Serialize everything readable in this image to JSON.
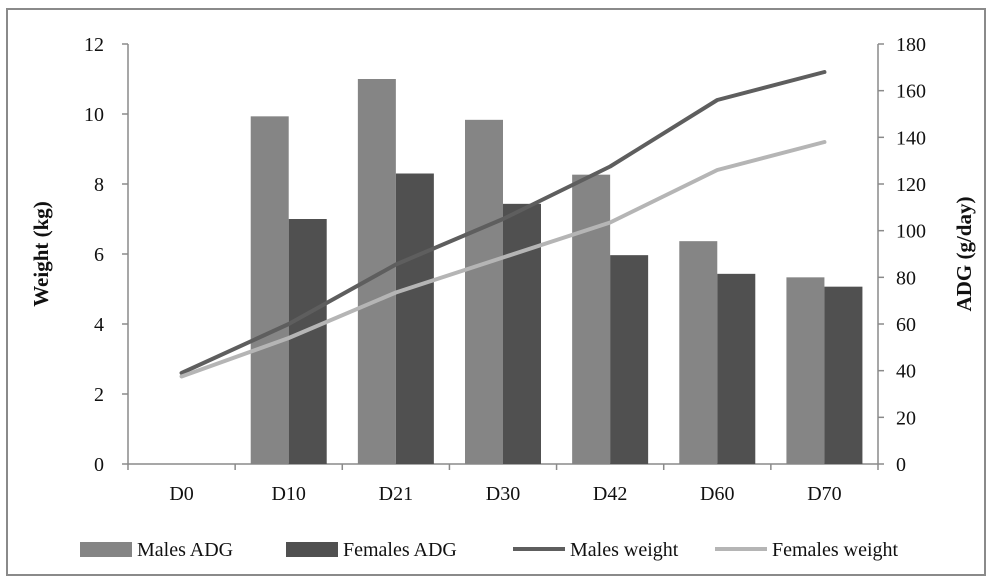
{
  "chart_data": {
    "type": "bar",
    "categories": [
      "D0",
      "D10",
      "D21",
      "D30",
      "D42",
      "D60",
      "D70"
    ],
    "series": [
      {
        "name": "Males ADG",
        "kind": "bar",
        "axis": "right",
        "color": "#858585",
        "values": [
          null,
          149,
          165,
          147.5,
          124,
          95.5,
          80
        ]
      },
      {
        "name": "Females ADG",
        "kind": "bar",
        "axis": "right",
        "color": "#505050",
        "values": [
          null,
          105,
          124.5,
          111.5,
          89.5,
          81.5,
          76
        ]
      },
      {
        "name": "Males weight",
        "kind": "line",
        "axis": "left",
        "color": "#5e5e5e",
        "values": [
          2.6,
          4.0,
          5.7,
          7.0,
          8.5,
          10.4,
          11.2
        ]
      },
      {
        "name": "Females weight",
        "kind": "line",
        "axis": "left",
        "color": "#b5b5b5",
        "values": [
          2.5,
          3.6,
          4.9,
          5.9,
          6.9,
          8.4,
          9.2
        ]
      }
    ],
    "ylabel_left": "Weight (kg)",
    "ylabel_right": "ADG (g/day)",
    "ylim_left": [
      0,
      12
    ],
    "ylim_right": [
      0,
      180
    ],
    "yticks_left": [
      "0",
      "2",
      "4",
      "6",
      "8",
      "10",
      "12"
    ],
    "yticks_right": [
      "0",
      "20",
      "40",
      "60",
      "80",
      "100",
      "120",
      "140",
      "160",
      "180"
    ],
    "grid": false,
    "legend_position": "bottom"
  }
}
